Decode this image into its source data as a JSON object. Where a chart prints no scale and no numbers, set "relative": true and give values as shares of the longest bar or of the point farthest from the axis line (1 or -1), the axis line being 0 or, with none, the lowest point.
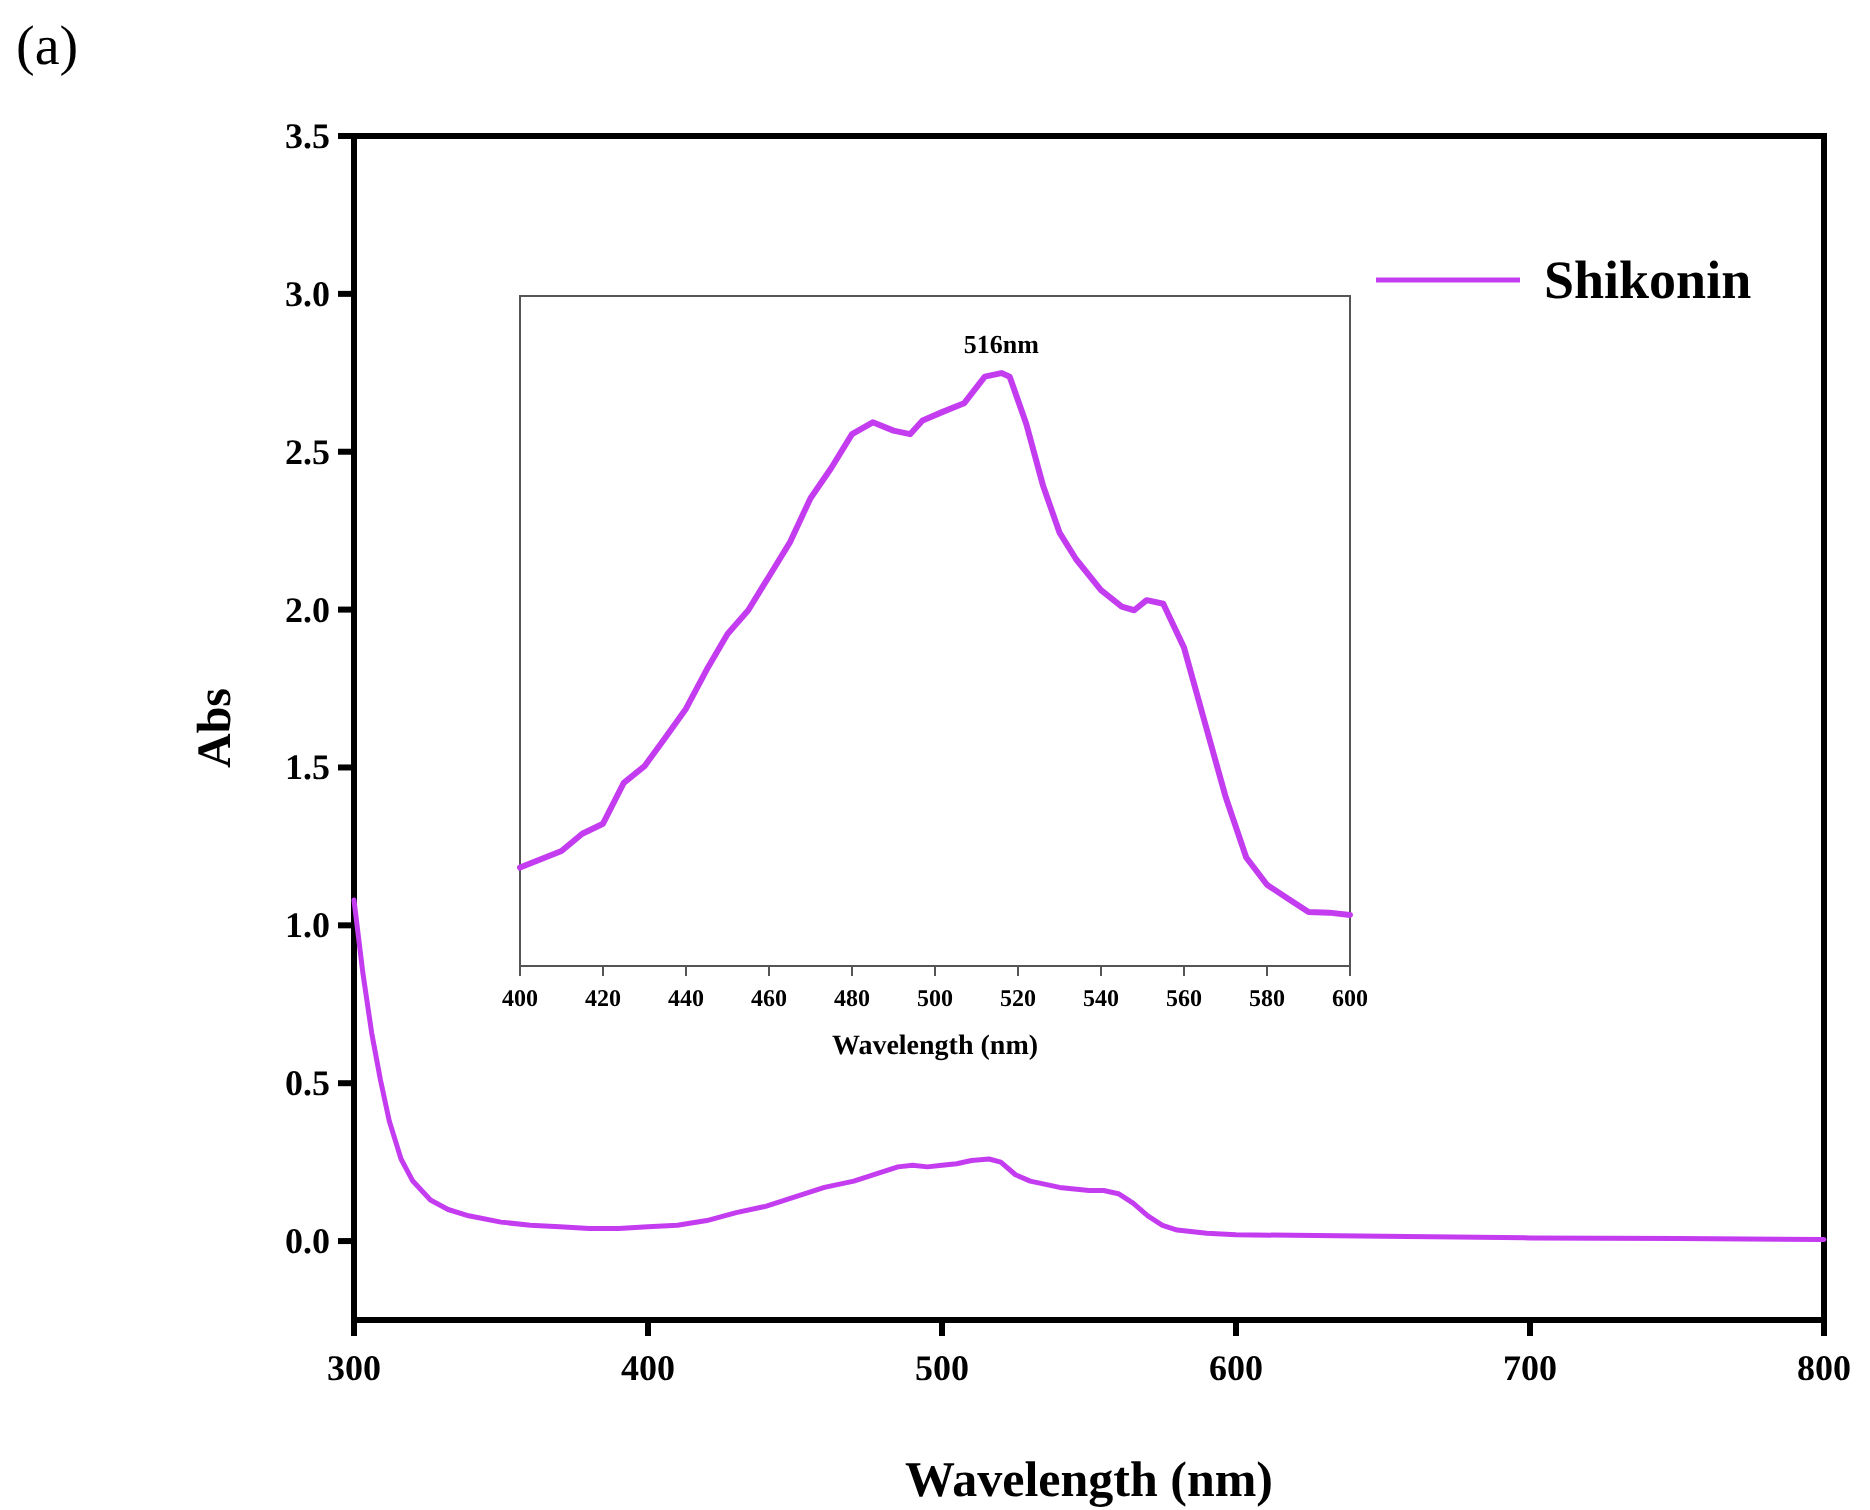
{
  "chart_data": [
    {
      "type": "line",
      "title": "(a)",
      "xlabel": "Wavelength (nm)",
      "ylabel": "Abs",
      "xlim": [
        300,
        800
      ],
      "xticks": [
        300,
        400,
        500,
        600,
        700,
        800
      ],
      "ylim": [
        -0.25,
        3.5
      ],
      "yticks": [
        {
          "value": 0,
          "label": "0.0"
        },
        0.5,
        {
          "value": 1,
          "label": "1.0"
        },
        1.5,
        {
          "value": 2,
          "label": "2.0"
        },
        2.5,
        {
          "value": 3,
          "label": "3.0"
        },
        3.5
      ],
      "legend": "top right",
      "line_style": "solid",
      "series": [
        {
          "name": "Shikonin",
          "color": "#c43cf0",
          "x": [
            300,
            303,
            306,
            309,
            312,
            316,
            320,
            326,
            332,
            339,
            350,
            360,
            370,
            380,
            390,
            400,
            410,
            420,
            430,
            440,
            450,
            460,
            470,
            480,
            485,
            490,
            495,
            500,
            505,
            510,
            516,
            520,
            525,
            530,
            540,
            550,
            555,
            560,
            565,
            570,
            575,
            580,
            590,
            600,
            650,
            700,
            750,
            800
          ],
          "values": [
            1.08,
            0.85,
            0.66,
            0.51,
            0.38,
            0.26,
            0.19,
            0.13,
            0.1,
            0.08,
            0.06,
            0.05,
            0.045,
            0.04,
            0.04,
            0.045,
            0.05,
            0.065,
            0.09,
            0.11,
            0.14,
            0.17,
            0.19,
            0.22,
            0.235,
            0.24,
            0.235,
            0.24,
            0.245,
            0.255,
            0.26,
            0.25,
            0.21,
            0.19,
            0.17,
            0.16,
            0.16,
            0.15,
            0.12,
            0.08,
            0.05,
            0.035,
            0.025,
            0.02,
            0.015,
            0.01,
            0.008,
            0.005
          ]
        }
      ]
    },
    {
      "type": "line",
      "xlabel": "Wavelength (nm)",
      "xlim": [
        400,
        600
      ],
      "xticks": [
        400,
        420,
        440,
        460,
        480,
        500,
        520,
        540,
        560,
        580,
        600
      ],
      "relative": true,
      "annotations": [
        {
          "text": "516nm",
          "x": 516,
          "y": 1
        }
      ],
      "line_style": "solid",
      "series": [
        {
          "color": "#c43cf0",
          "x": [
            400,
            405,
            410,
            415,
            420,
            425,
            430,
            435,
            440,
            445,
            450,
            455,
            460,
            465,
            470,
            475,
            480,
            485,
            490,
            494,
            497,
            502,
            507,
            512,
            516,
            518,
            522,
            526,
            530,
            534,
            540,
            545,
            548,
            551,
            555,
            560,
            565,
            570,
            575,
            580,
            585,
            590,
            595,
            600
          ],
          "values": [
            0.166,
            0.18,
            0.194,
            0.223,
            0.24,
            0.309,
            0.337,
            0.385,
            0.434,
            0.5,
            0.56,
            0.6,
            0.657,
            0.714,
            0.789,
            0.84,
            0.897,
            0.917,
            0.903,
            0.897,
            0.92,
            0.935,
            0.949,
            0.994,
            1.0,
            0.994,
            0.914,
            0.811,
            0.731,
            0.686,
            0.634,
            0.606,
            0.6,
            0.617,
            0.611,
            0.537,
            0.411,
            0.286,
            0.183,
            0.137,
            0.114,
            0.091,
            0.09,
            0.086
          ]
        }
      ]
    }
  ]
}
